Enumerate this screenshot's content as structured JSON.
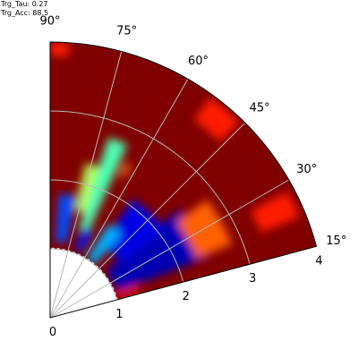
{
  "header": {
    "trg_tau": "Trg_Tau: 0.27",
    "trg_acc": "Trg_Acc: 88.5"
  },
  "chart_data": {
    "type": "heatmap",
    "projection": "polar",
    "colormap": "jet",
    "grid": true,
    "theta_range_deg": [
      15,
      90
    ],
    "r_range": [
      0,
      4
    ],
    "r_inner_empty": 1,
    "theta_ticks": [
      "15°",
      "30°",
      "45°",
      "60°",
      "75°",
      "90°"
    ],
    "theta_tick_values": [
      15,
      30,
      45,
      60,
      75,
      90
    ],
    "r_ticks": [
      "0",
      "1",
      "2",
      "3",
      "4"
    ],
    "r_tick_values": [
      0,
      1,
      2,
      3,
      4
    ],
    "background_level": 1.0,
    "regions": [
      {
        "r": [
          1.05,
          2.45
        ],
        "theta": [
          21,
          40
        ],
        "level": 0.05
      },
      {
        "r": [
          1.3,
          2.1
        ],
        "theta": [
          38,
          55
        ],
        "level": 0.1
      },
      {
        "r": [
          1.0,
          1.6
        ],
        "theta": [
          50,
          58
        ],
        "level": 0.3
      },
      {
        "r": [
          2.3,
          2.85
        ],
        "theta": [
          22,
          37
        ],
        "level": 0.78
      },
      {
        "r": [
          1.0,
          1.35
        ],
        "theta": [
          16,
          20
        ],
        "level": 0.85
      },
      {
        "r": [
          1.35,
          2.75
        ],
        "theta": [
          66,
          72
        ],
        "level": 0.45
      },
      {
        "r": [
          1.05,
          1.4
        ],
        "theta": [
          64,
          70
        ],
        "level": 0.15
      },
      {
        "r": [
          1.1,
          1.8
        ],
        "theta": [
          78,
          86
        ],
        "level": 0.2
      },
      {
        "r": [
          1.6,
          2.3
        ],
        "theta": [
          72,
          77
        ],
        "level": 0.55
      },
      {
        "r": [
          2.3,
          2.5
        ],
        "theta": [
          62,
          64
        ],
        "level": 0.75
      },
      {
        "r": [
          3.55,
          3.95
        ],
        "theta": [
          46,
          54
        ],
        "level": 0.85
      },
      {
        "r": [
          3.3,
          3.9
        ],
        "theta": [
          22,
          28
        ],
        "level": 0.85
      },
      {
        "r": [
          3.8,
          4.0
        ],
        "theta": [
          86,
          90
        ],
        "level": 0.85
      }
    ]
  }
}
